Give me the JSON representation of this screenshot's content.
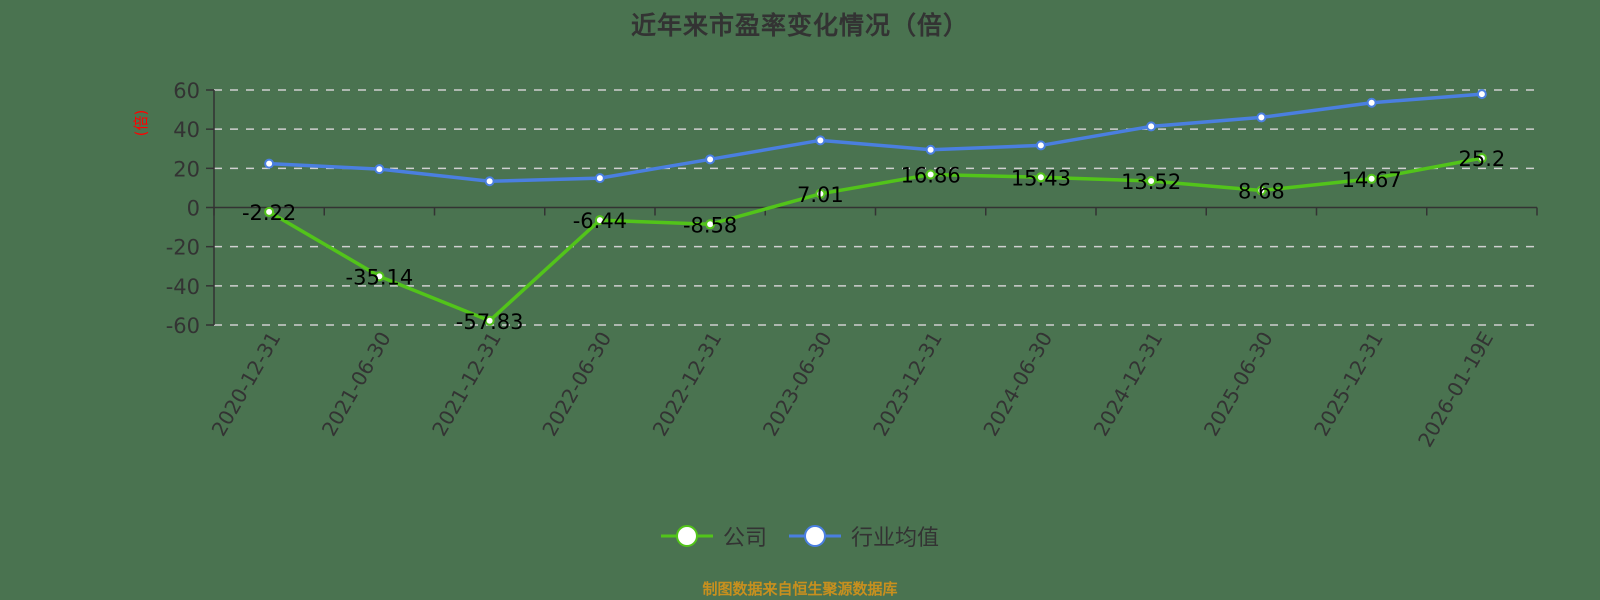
{
  "title": "近年来市盈率变化情况（倍）",
  "source": "制图数据来自恒生聚源数据库",
  "chart_data": {
    "type": "line",
    "title": "近年来市盈率变化情况（倍）",
    "xlabel": "",
    "ylabel": "(倍)",
    "ylim": [
      -60,
      60
    ],
    "yticks": [
      60,
      40,
      20,
      0,
      -20,
      -40,
      -60
    ],
    "grid": true,
    "legend_position": "bottom",
    "categories": [
      "2020-12-31",
      "2021-06-30",
      "2021-12-31",
      "2022-06-30",
      "2022-12-31",
      "2023-06-30",
      "2023-12-31",
      "2024-06-30",
      "2024-12-31",
      "2025-06-30",
      "2025-12-31",
      "2026-01-19E"
    ],
    "series": [
      {
        "name": "公司",
        "color": "#52c41a",
        "show_labels": true,
        "values": [
          -2.22,
          -35.14,
          -57.83,
          -6.44,
          -8.58,
          7.01,
          16.86,
          15.43,
          13.52,
          8.68,
          14.67,
          25.2
        ],
        "labels": [
          "-2.22",
          "-35.14",
          "-57.83",
          "-6.44",
          "-8.58",
          "7.01",
          "16.86",
          "15.43",
          "13.52",
          "8.68",
          "14.67",
          "25.2"
        ]
      },
      {
        "name": "行业均值",
        "color": "#4a7fe0",
        "show_labels": false,
        "values": [
          22.4,
          19.6,
          13.4,
          15.0,
          24.6,
          34.3,
          29.5,
          31.7,
          41.4,
          46.0,
          53.5,
          57.9
        ]
      }
    ]
  },
  "legend": [
    {
      "label": "公司",
      "color": "#52c41a"
    },
    {
      "label": "行业均值",
      "color": "#4a7fe0"
    }
  ]
}
